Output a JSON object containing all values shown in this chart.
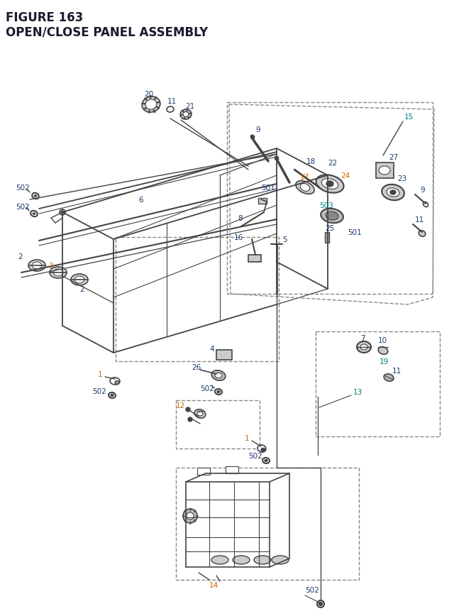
{
  "title_line1": "FIGURE 163",
  "title_line2": "OPEN/CLOSE PANEL ASSEMBLY",
  "title_color": "#1a1a2e",
  "title_fontsize": 12,
  "bg_color": "#ffffff",
  "blue": "#1a3a6b",
  "orange": "#cc6600",
  "teal": "#008080",
  "gray": "#444444",
  "dash_color": "#888888",
  "lw_main": 1.2,
  "lw_thin": 0.8,
  "fs_label": 7.5
}
